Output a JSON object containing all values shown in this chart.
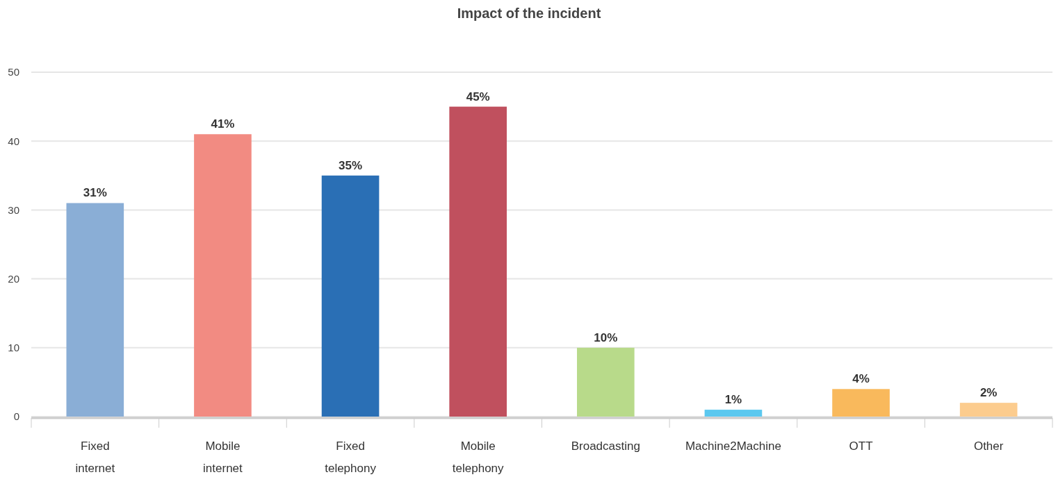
{
  "chart_data": {
    "type": "bar",
    "title": "Impact of the incident",
    "categories": [
      "Fixed internet",
      "Mobile internet",
      "Fixed telephony",
      "Mobile telephony",
      "Broadcasting",
      "Machine2Machine",
      "OTT",
      "Other"
    ],
    "values": [
      31,
      41,
      35,
      45,
      10,
      1,
      4,
      2
    ],
    "colors": [
      "#8aaed6",
      "#f28b82",
      "#2a6fb5",
      "#c0505e",
      "#b8da8a",
      "#5bc8ef",
      "#f9b95c",
      "#fccc8e"
    ],
    "value_labels": [
      "31%",
      "41%",
      "35%",
      "45%",
      "10%",
      "1%",
      "4%",
      "2%"
    ],
    "ylim": [
      0,
      50
    ],
    "yticks": [
      0,
      10,
      20,
      30,
      40,
      50
    ],
    "grid": "y"
  }
}
